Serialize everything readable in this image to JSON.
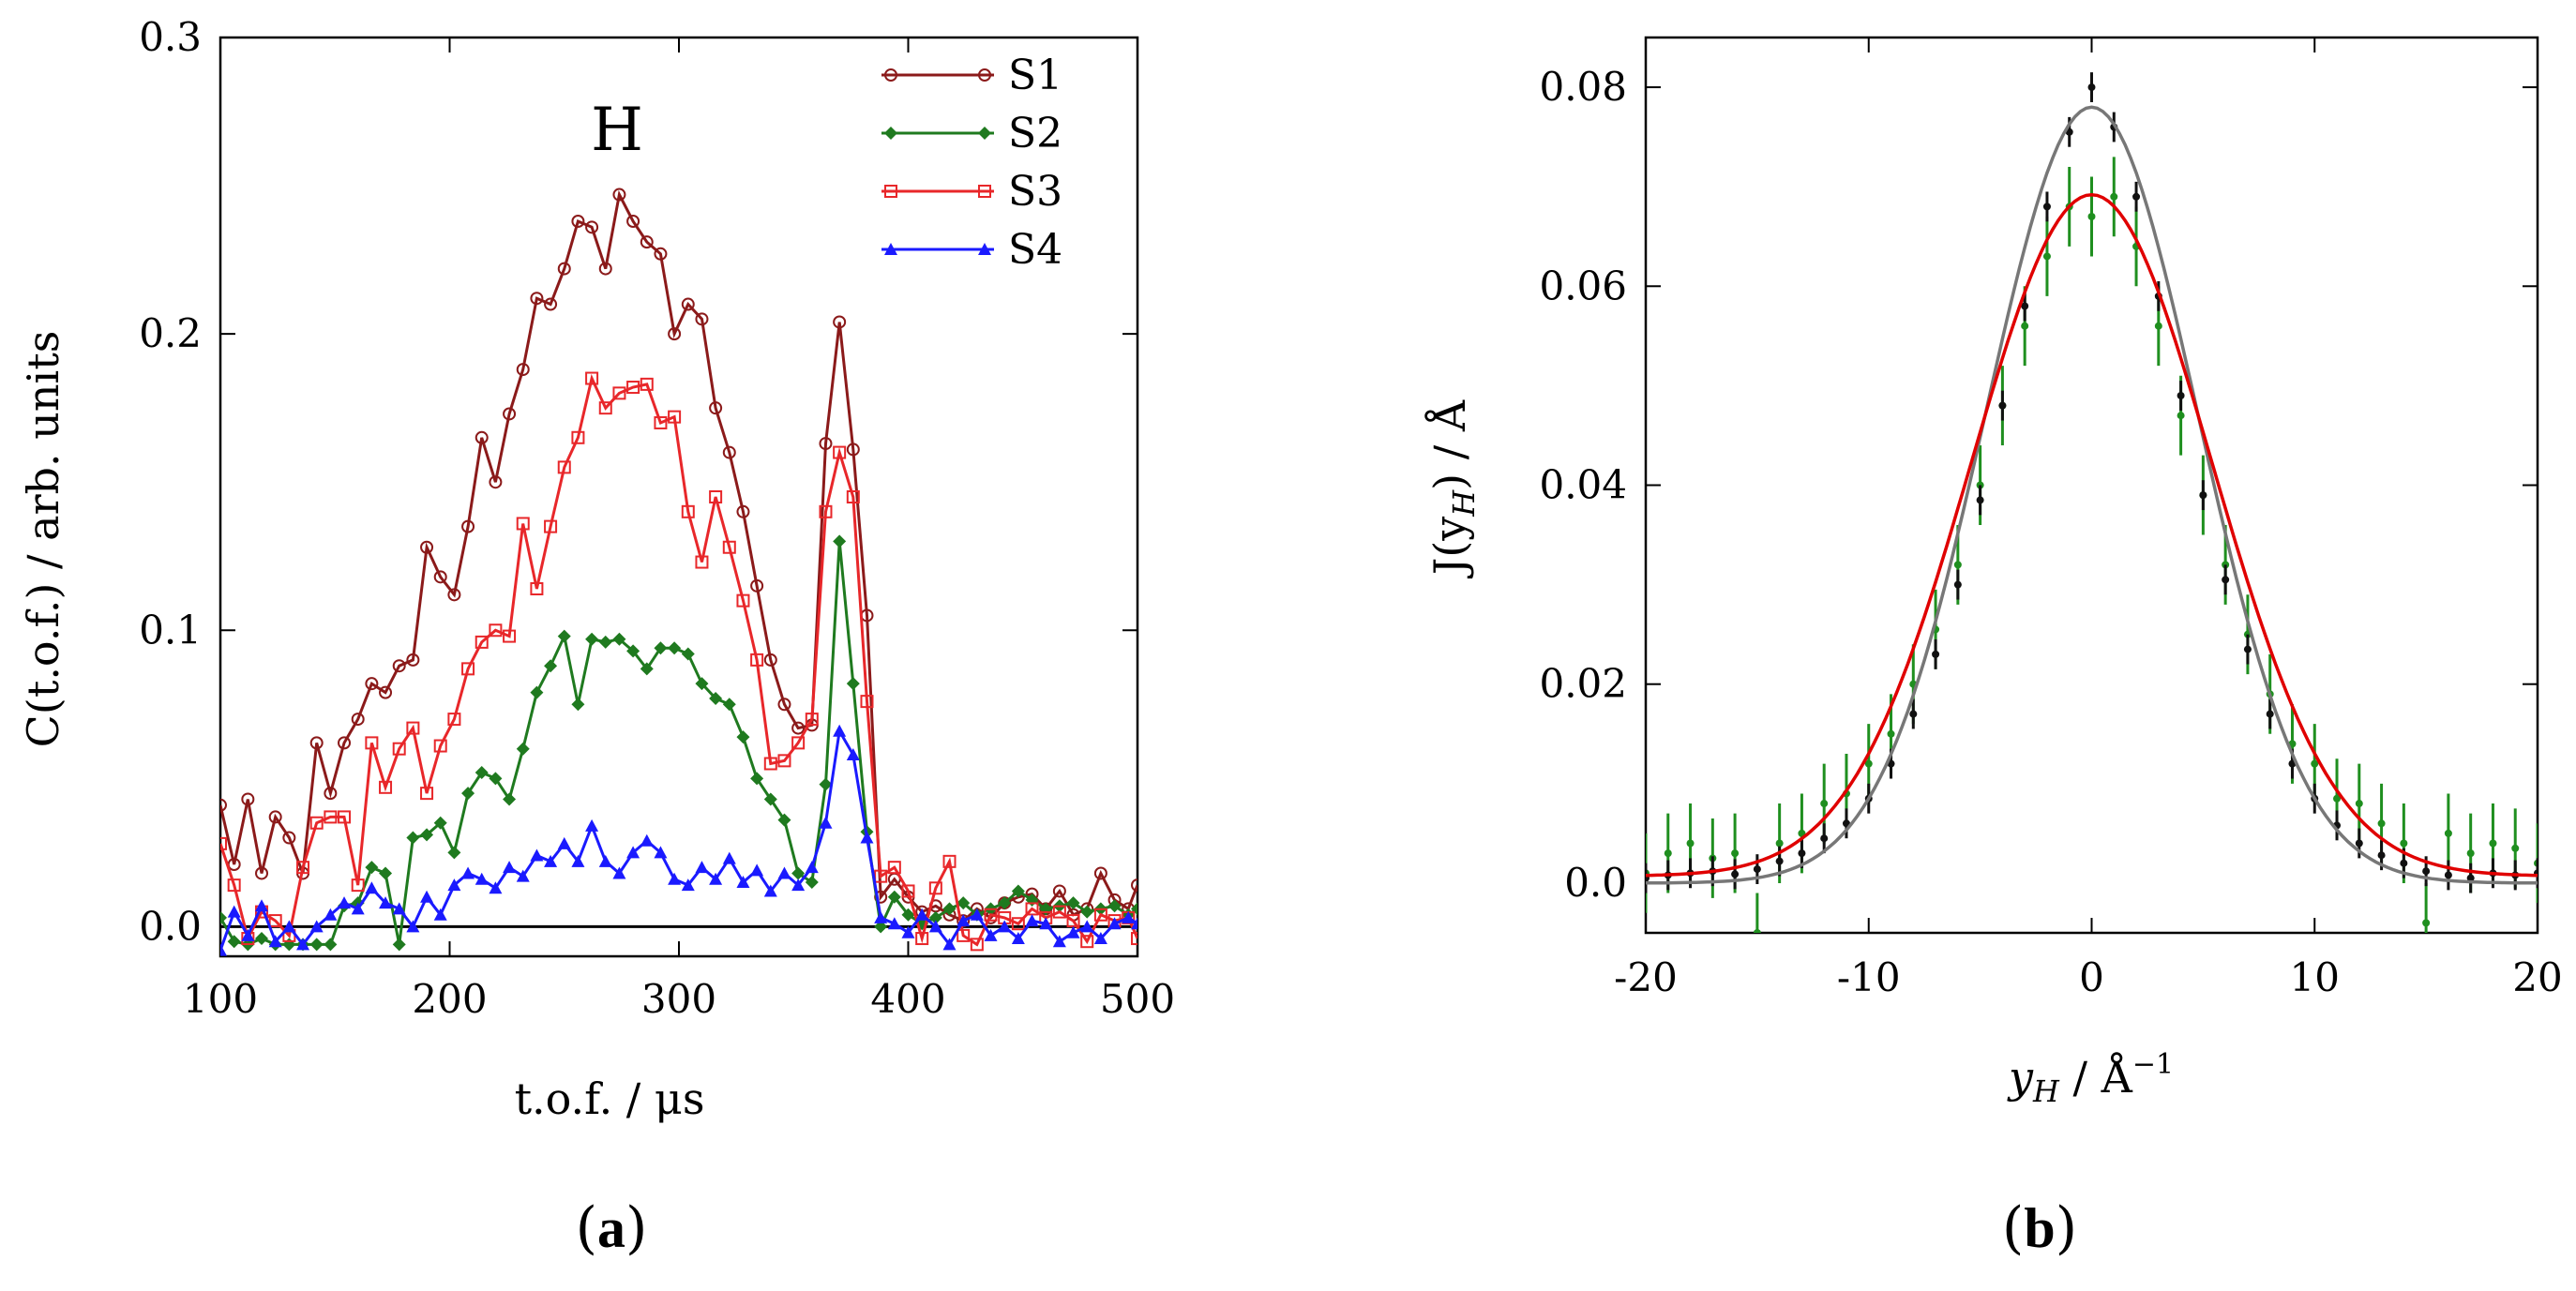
{
  "chart_data": [
    {
      "id": "a",
      "type": "line",
      "panel_label": "a",
      "annotation": "H",
      "xlabel": "t.o.f. / μs",
      "ylabel": "C(t.o.f.) / arb. units",
      "xlim": [
        100,
        500
      ],
      "ylim": [
        -0.01,
        0.3
      ],
      "xticks": [
        "100",
        "200",
        "300",
        "400",
        "500"
      ],
      "yticks": [
        "0.0",
        "0.1",
        "0.2",
        "0.3"
      ],
      "xtick_values": [
        100,
        200,
        300,
        400,
        500
      ],
      "ytick_values": [
        0.0,
        0.1,
        0.2,
        0.3
      ],
      "baseline": 0,
      "legend_position": "top-right",
      "series": [
        {
          "name": "S1",
          "color": "#8b1a1a",
          "marker": "circle",
          "x": [
            100,
            106,
            112,
            118,
            124,
            130,
            136,
            142,
            148,
            154,
            160,
            166,
            172,
            178,
            184,
            190,
            196,
            202,
            208,
            214,
            220,
            226,
            232,
            238,
            244,
            250,
            256,
            262,
            268,
            274,
            280,
            286,
            292,
            298,
            304,
            310,
            316,
            322,
            328,
            334,
            340,
            346,
            352,
            358,
            364,
            370,
            376,
            382,
            388,
            394,
            400,
            406,
            412,
            418,
            424,
            430,
            436,
            442,
            448,
            454,
            460,
            466,
            472,
            478,
            484,
            490,
            496,
            500
          ],
          "y": [
            0.041,
            0.021,
            0.043,
            0.018,
            0.037,
            0.03,
            0.018,
            0.062,
            0.045,
            0.062,
            0.07,
            0.082,
            0.079,
            0.088,
            0.09,
            0.128,
            0.118,
            0.112,
            0.135,
            0.165,
            0.15,
            0.173,
            0.188,
            0.212,
            0.21,
            0.222,
            0.238,
            0.236,
            0.222,
            0.247,
            0.238,
            0.231,
            0.227,
            0.2,
            0.21,
            0.205,
            0.175,
            0.16,
            0.14,
            0.115,
            0.09,
            0.075,
            0.067,
            0.068,
            0.163,
            0.204,
            0.161,
            0.105,
            0.01,
            0.016,
            0.01,
            0.005,
            0.007,
            0.004,
            0.002,
            0.006,
            0.003,
            0.008,
            0.01,
            0.011,
            0.006,
            0.012,
            0.004,
            0.006,
            0.018,
            0.009,
            0.006,
            0.014
          ]
        },
        {
          "name": "S2",
          "color": "#1f7a1f",
          "marker": "diamond",
          "x": [
            100,
            106,
            112,
            118,
            124,
            130,
            136,
            142,
            148,
            154,
            160,
            166,
            172,
            178,
            184,
            190,
            196,
            202,
            208,
            214,
            220,
            226,
            232,
            238,
            244,
            250,
            256,
            262,
            268,
            274,
            280,
            286,
            292,
            298,
            304,
            310,
            316,
            322,
            328,
            334,
            340,
            346,
            352,
            358,
            364,
            370,
            376,
            382,
            388,
            394,
            400,
            406,
            412,
            418,
            424,
            430,
            436,
            442,
            448,
            454,
            460,
            466,
            472,
            478,
            484,
            490,
            496,
            500
          ],
          "y": [
            0.003,
            -0.005,
            -0.006,
            -0.004,
            -0.006,
            -0.006,
            -0.006,
            -0.006,
            -0.006,
            0.007,
            0.008,
            0.02,
            0.018,
            -0.006,
            0.03,
            0.031,
            0.035,
            0.025,
            0.045,
            0.052,
            0.05,
            0.043,
            0.06,
            0.079,
            0.088,
            0.098,
            0.075,
            0.097,
            0.096,
            0.097,
            0.093,
            0.087,
            0.094,
            0.094,
            0.092,
            0.082,
            0.077,
            0.075,
            0.064,
            0.05,
            0.043,
            0.036,
            0.018,
            0.015,
            0.048,
            0.13,
            0.082,
            0.032,
            0.0,
            0.01,
            0.004,
            0.001,
            0.003,
            0.006,
            0.008,
            0.004,
            0.006,
            0.008,
            0.012,
            0.009,
            0.006,
            0.007,
            0.008,
            0.005,
            0.006,
            0.007,
            0.004,
            0.006
          ]
        },
        {
          "name": "S3",
          "color": "#e8272a",
          "marker": "square",
          "x": [
            100,
            106,
            112,
            118,
            124,
            130,
            136,
            142,
            148,
            154,
            160,
            166,
            172,
            178,
            184,
            190,
            196,
            202,
            208,
            214,
            220,
            226,
            232,
            238,
            244,
            250,
            256,
            262,
            268,
            274,
            280,
            286,
            292,
            298,
            304,
            310,
            316,
            322,
            328,
            334,
            340,
            346,
            352,
            358,
            364,
            370,
            376,
            382,
            388,
            394,
            400,
            406,
            412,
            418,
            424,
            430,
            436,
            442,
            448,
            454,
            460,
            466,
            472,
            478,
            484,
            490,
            496,
            500
          ],
          "y": [
            0.028,
            0.014,
            -0.004,
            0.005,
            0.002,
            -0.003,
            0.02,
            0.035,
            0.037,
            0.037,
            0.014,
            0.062,
            0.047,
            0.06,
            0.067,
            0.045,
            0.061,
            0.07,
            0.087,
            0.096,
            0.1,
            0.098,
            0.136,
            0.114,
            0.135,
            0.155,
            0.165,
            0.185,
            0.175,
            0.18,
            0.182,
            0.183,
            0.17,
            0.172,
            0.14,
            0.123,
            0.145,
            0.128,
            0.11,
            0.09,
            0.055,
            0.056,
            0.062,
            0.07,
            0.14,
            0.16,
            0.145,
            0.076,
            0.017,
            0.02,
            0.012,
            -0.004,
            0.013,
            0.022,
            -0.003,
            -0.006,
            0.004,
            0.003,
            0.001,
            0.006,
            0.003,
            0.005,
            0.002,
            -0.005,
            0.004,
            0.002,
            0.003,
            -0.004
          ]
        },
        {
          "name": "S4",
          "color": "#1a1aff",
          "marker": "triangle",
          "x": [
            100,
            106,
            112,
            118,
            124,
            130,
            136,
            142,
            148,
            154,
            160,
            166,
            172,
            178,
            184,
            190,
            196,
            202,
            208,
            214,
            220,
            226,
            232,
            238,
            244,
            250,
            256,
            262,
            268,
            274,
            280,
            286,
            292,
            298,
            304,
            310,
            316,
            322,
            328,
            334,
            340,
            346,
            352,
            358,
            364,
            370,
            376,
            382,
            388,
            394,
            400,
            406,
            412,
            418,
            424,
            430,
            436,
            442,
            448,
            454,
            460,
            466,
            472,
            478,
            484,
            490,
            496,
            500
          ],
          "y": [
            -0.008,
            0.005,
            -0.003,
            0.007,
            -0.005,
            0.0,
            -0.006,
            0.0,
            0.004,
            0.008,
            0.006,
            0.013,
            0.008,
            0.006,
            0.0,
            0.01,
            0.004,
            0.014,
            0.018,
            0.016,
            0.013,
            0.02,
            0.017,
            0.024,
            0.022,
            0.028,
            0.022,
            0.034,
            0.022,
            0.018,
            0.025,
            0.029,
            0.025,
            0.016,
            0.014,
            0.02,
            0.016,
            0.023,
            0.015,
            0.019,
            0.012,
            0.018,
            0.014,
            0.02,
            0.035,
            0.066,
            0.058,
            0.03,
            0.003,
            0.001,
            -0.002,
            0.004,
            0.0,
            -0.006,
            0.002,
            0.004,
            -0.003,
            0.0,
            -0.004,
            0.002,
            0.001,
            -0.005,
            -0.002,
            0.0,
            -0.004,
            0.001,
            0.003,
            0.001
          ]
        }
      ]
    },
    {
      "id": "b",
      "type": "line",
      "panel_label": "b",
      "xlabel_main": "y",
      "xlabel_sub": "H",
      "xlabel_rest": " / Å",
      "xlabel_sup": "−1",
      "ylabel_main": "J(y",
      "ylabel_sub": "H",
      "ylabel_rest": ") / Å",
      "xlim": [
        -20,
        20
      ],
      "ylim": [
        -0.005,
        0.085
      ],
      "xticks": [
        "-20",
        "-10",
        "0",
        "10",
        "20"
      ],
      "yticks": [
        "0.0",
        "0.02",
        "0.04",
        "0.06",
        "0.08"
      ],
      "xtick_values": [
        -20,
        -10,
        0,
        10,
        20
      ],
      "ytick_values": [
        0.0,
        0.02,
        0.04,
        0.06,
        0.08
      ],
      "fits": [
        {
          "name": "fit-black",
          "color": "#777777",
          "amplitude": 0.078,
          "sigma": 4.75,
          "offset": 0.0
        },
        {
          "name": "fit-red",
          "color": "#e00000",
          "amplitude": 0.0685,
          "sigma": 5.4,
          "offset": 0.0007
        }
      ],
      "series": [
        {
          "name": "data-black",
          "color": "#111111",
          "x": [
            -20,
            -19,
            -18,
            -17,
            -16,
            -15,
            -14,
            -13,
            -12,
            -11,
            -10,
            -9,
            -8,
            -7,
            -6,
            -5,
            -4,
            -3,
            -2,
            -1,
            0,
            1,
            2,
            3,
            4,
            5,
            6,
            7,
            8,
            9,
            10,
            11,
            12,
            13,
            14,
            15,
            16,
            17,
            18,
            19,
            20
          ],
          "y": [
            0.0005,
            0.0008,
            0.001,
            0.0012,
            0.0009,
            0.0014,
            0.0022,
            0.003,
            0.0045,
            0.006,
            0.0085,
            0.012,
            0.017,
            0.023,
            0.03,
            0.0385,
            0.048,
            0.058,
            0.068,
            0.0755,
            0.08,
            0.076,
            0.069,
            0.059,
            0.049,
            0.039,
            0.0305,
            0.0235,
            0.017,
            0.012,
            0.0085,
            0.0058,
            0.004,
            0.0028,
            0.002,
            0.0012,
            0.0008,
            0.0005,
            0.001,
            0.0008,
            0.001
          ],
          "err": [
            0.0015,
            0.0015,
            0.0015,
            0.0015,
            0.0015,
            0.0015,
            0.0015,
            0.0015,
            0.0015,
            0.0015,
            0.0015,
            0.0015,
            0.0015,
            0.0015,
            0.0015,
            0.0015,
            0.0015,
            0.0015,
            0.0015,
            0.0015,
            0.0015,
            0.0015,
            0.0015,
            0.0015,
            0.0015,
            0.0015,
            0.0015,
            0.0015,
            0.0015,
            0.0015,
            0.0015,
            0.0015,
            0.0015,
            0.0015,
            0.0015,
            0.0015,
            0.0015,
            0.0015,
            0.0015,
            0.0015,
            0.0015
          ]
        },
        {
          "name": "data-green",
          "color": "#1f8f1f",
          "x": [
            -20,
            -19,
            -18,
            -17,
            -16,
            -15,
            -14,
            -13,
            -12,
            -11,
            -10,
            -9,
            -8,
            -7,
            -6,
            -5,
            -4,
            -3,
            -2,
            -1,
            0,
            1,
            2,
            3,
            4,
            5,
            6,
            7,
            8,
            9,
            10,
            11,
            12,
            13,
            14,
            15,
            16,
            17,
            18,
            19,
            20
          ],
          "y": [
            0.001,
            0.003,
            0.004,
            0.0025,
            0.003,
            -0.005,
            0.004,
            0.005,
            0.008,
            0.009,
            0.012,
            0.015,
            0.02,
            0.0255,
            0.032,
            0.04,
            0.048,
            0.056,
            0.063,
            0.068,
            0.067,
            0.069,
            0.064,
            0.056,
            0.047,
            0.039,
            0.032,
            0.025,
            0.019,
            0.014,
            0.012,
            0.0085,
            0.008,
            0.006,
            0.004,
            -0.004,
            0.005,
            0.003,
            0.004,
            0.0035,
            0.002
          ],
          "err": [
            0.004,
            0.004,
            0.004,
            0.004,
            0.004,
            0.004,
            0.004,
            0.004,
            0.004,
            0.004,
            0.004,
            0.004,
            0.004,
            0.004,
            0.004,
            0.004,
            0.004,
            0.004,
            0.004,
            0.004,
            0.004,
            0.004,
            0.004,
            0.004,
            0.004,
            0.004,
            0.004,
            0.004,
            0.004,
            0.004,
            0.004,
            0.004,
            0.004,
            0.004,
            0.004,
            0.004,
            0.004,
            0.004,
            0.004,
            0.004,
            0.004
          ]
        }
      ]
    }
  ]
}
